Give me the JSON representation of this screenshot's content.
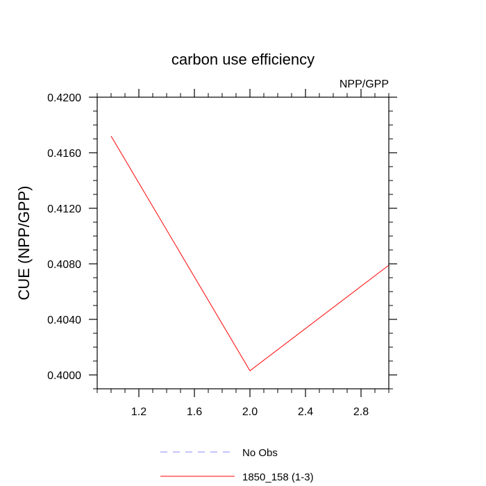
{
  "chart_data": {
    "type": "line",
    "title": "carbon use efficiency",
    "subtitle": "NPP/GPP",
    "xlabel": "",
    "ylabel": "CUE  (NPP/GPP)",
    "xlim": [
      0.9,
      3.0
    ],
    "ylim": [
      0.399,
      0.42
    ],
    "xticks": [
      1.2,
      1.6,
      2.0,
      2.4,
      2.8
    ],
    "xtick_labels": [
      "1.2",
      "1.6",
      "2.0",
      "2.4",
      "2.8"
    ],
    "yticks": [
      0.4,
      0.404,
      0.408,
      0.412,
      0.416,
      0.42
    ],
    "ytick_labels": [
      "0.4000",
      "0.4040",
      "0.4080",
      "0.4120",
      "0.4160",
      "0.4200"
    ],
    "grid": false,
    "legend_position": "bottom",
    "series": [
      {
        "name": "1850_158 (1-3)",
        "color": "#ff0000",
        "style": "solid",
        "x": [
          1.0,
          2.0,
          3.0
        ],
        "y": [
          0.4172,
          0.4003,
          0.4079
        ]
      }
    ],
    "legend": [
      {
        "label": "No Obs",
        "color": "#8888ff",
        "style": "dashed"
      },
      {
        "label": "1850_158 (1-3)",
        "color": "#ff0000",
        "style": "solid"
      }
    ]
  }
}
